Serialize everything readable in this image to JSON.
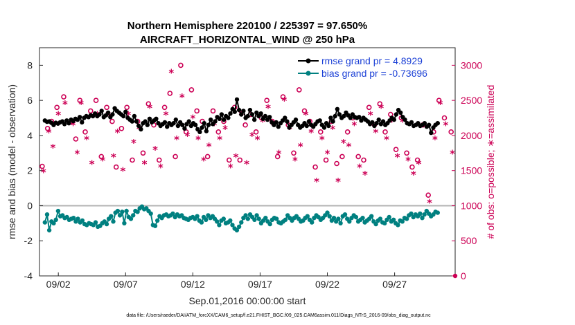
{
  "chart_data": {
    "type": "line",
    "title": "Northern Hemisphere 220100 / 225397 = 97.650%",
    "subtitle": "AIRCRAFT_HORIZONTAL_WIND @ 250 hPa",
    "xlabel": "Sep.01,2016 00:00:00 start",
    "ylabel": "rmse and bias (model - observation)",
    "ylabel_right": "# of obs: o=possible; ∗=assimilated",
    "footnote": "data file: /Users/raeder/DAI/ATM_forcXX/CAM6_setup/f.e21.FHIST_BGC.f09_025.CAM6assim.011/Diags_NTrS_2016-09/obs_diag_output.nc",
    "xlim": [
      0.6,
      31.5
    ],
    "ylim": [
      -4,
      9
    ],
    "ylim_right": [
      0,
      3250
    ],
    "x_ticks": [
      2,
      7,
      12,
      17,
      22,
      27
    ],
    "x_tick_labels": [
      "09/02",
      "09/07",
      "09/12",
      "09/17",
      "09/22",
      "09/27"
    ],
    "y_ticks": [
      -4,
      -2,
      0,
      2,
      4,
      6,
      8
    ],
    "y_tick_labels": [
      "-4",
      "-2",
      "0",
      "2",
      "4",
      "6",
      "8"
    ],
    "y2_ticks": [
      0,
      500,
      1000,
      1500,
      2000,
      2500,
      3000
    ],
    "y2_tick_labels": [
      "0",
      "500",
      "1000",
      "1500",
      "2000",
      "2500",
      "3000"
    ],
    "legend_position": "top-right",
    "colors": {
      "rmse": "#000000",
      "bias": "#008080",
      "obs": "#cc0055",
      "zero_line": "#b3b3b3",
      "legend_text": "#1a3fd6",
      "axis": "#262626"
    },
    "series": [
      {
        "name": "rmse grand pr = 4.8929",
        "axis": "left",
        "marker": "circle",
        "values": [
          4.85,
          4.78,
          4.8,
          4.72,
          4.6,
          4.72,
          4.68,
          4.75,
          4.8,
          4.65,
          4.85,
          4.7,
          4.9,
          4.82,
          4.95,
          4.9,
          5.05,
          4.75,
          5.0,
          5.1,
          5.05,
          5.15,
          5.1,
          5.25,
          5.1,
          5.2,
          5.4,
          5.05,
          5.15,
          5.3,
          5.05,
          5.2,
          5.55,
          5.4,
          5.3,
          5.2,
          5.1,
          5.35,
          5.0,
          4.9,
          4.8,
          5.1,
          4.8,
          4.55,
          4.35,
          4.7,
          4.8,
          4.6,
          4.95,
          4.75,
          4.85,
          4.95,
          4.7,
          4.55,
          4.65,
          4.75,
          4.5,
          4.7,
          4.6,
          4.7,
          4.9,
          4.55,
          4.75,
          4.6,
          4.4,
          4.65,
          4.8,
          4.55,
          4.7,
          4.6,
          4.35,
          4.2,
          4.45,
          4.7,
          4.25,
          4.6,
          4.9,
          4.65,
          4.8,
          5.05,
          4.95,
          5.2,
          4.9,
          5.1,
          5.0,
          5.25,
          5.5,
          5.35,
          6.05,
          5.45,
          5.2,
          5.4,
          5.0,
          5.1,
          5.45,
          5.2,
          4.9,
          5.3,
          5.1,
          5.25,
          4.95,
          5.1,
          4.9,
          5.05,
          4.75,
          4.6,
          4.75,
          4.5,
          4.7,
          4.85,
          5.0,
          4.8,
          4.45,
          4.6,
          4.75,
          4.9,
          4.6,
          4.45,
          4.55,
          4.7,
          4.55,
          4.8,
          4.6,
          4.5,
          4.65,
          4.8,
          4.85,
          4.6,
          4.45,
          4.7,
          4.55,
          5.0,
          4.8,
          5.1,
          5.5,
          5.2,
          5.0,
          5.1,
          5.3,
          5.15,
          5.0,
          5.2,
          5.05,
          5.0,
          5.05,
          4.85,
          5.0,
          4.9,
          4.8,
          4.65,
          4.75,
          4.55,
          4.7,
          4.9,
          4.65,
          4.8,
          4.6,
          4.7,
          4.85,
          5.0,
          4.9,
          5.2,
          5.45,
          5.3,
          5.05,
          4.9,
          4.7,
          4.65,
          4.75,
          4.55,
          4.6,
          4.7,
          4.55,
          4.6,
          4.7,
          4.5,
          4.6,
          4.15,
          4.45,
          4.6,
          4.7
        ]
      },
      {
        "name": "bias grand pr = -0.73696",
        "axis": "left",
        "marker": "circle",
        "values": [
          -0.95,
          -0.5,
          -1.4,
          -0.9,
          -1.0,
          -0.8,
          -0.3,
          -0.6,
          -0.55,
          -0.7,
          -0.65,
          -0.8,
          -0.75,
          -0.7,
          -0.9,
          -0.75,
          -0.95,
          -0.85,
          -1.05,
          -1.1,
          -1.0,
          -1.05,
          -1.1,
          -0.95,
          -1.2,
          -1.15,
          -1.0,
          -0.9,
          -1.05,
          -0.75,
          -0.6,
          -0.9,
          -0.4,
          -0.3,
          -0.55,
          -0.35,
          -1.0,
          -0.3,
          -0.65,
          -0.75,
          -0.55,
          -0.3,
          -0.35,
          -0.15,
          -0.05,
          -0.2,
          -0.15,
          -0.3,
          -0.45,
          -1.1,
          -1.15,
          -0.85,
          -0.6,
          -0.7,
          -0.55,
          -0.5,
          -0.6,
          -0.55,
          -0.45,
          -0.65,
          -0.5,
          -0.6,
          -0.55,
          -0.7,
          -0.75,
          -0.8,
          -0.7,
          -0.65,
          -0.75,
          -0.6,
          -0.85,
          -0.95,
          -0.65,
          -0.8,
          -0.55,
          -0.7,
          -0.6,
          -0.75,
          -0.9,
          -1.1,
          -0.85,
          -0.75,
          -1.0,
          -0.95,
          -0.85,
          -1.1,
          -1.3,
          -1.4,
          -1.2,
          -0.95,
          -0.7,
          -0.55,
          -0.75,
          -0.5,
          -0.65,
          -0.8,
          -0.55,
          -0.75,
          -1.0,
          -0.85,
          -0.7,
          -0.9,
          -1.05,
          -0.8,
          -0.7,
          -0.75,
          -0.95,
          -1.0,
          -0.9,
          -0.8,
          -0.55,
          -0.7,
          -0.85,
          -0.7,
          -0.6,
          -0.75,
          -0.9,
          -0.85,
          -0.7,
          -0.6,
          -0.8,
          -0.95,
          -0.7,
          -0.55,
          -0.65,
          -0.8,
          -0.7,
          -0.55,
          -0.4,
          -0.6,
          -0.85,
          -0.7,
          -0.9,
          -0.75,
          -1.0,
          -0.6,
          -0.5,
          -0.75,
          -0.9,
          -0.7,
          -0.55,
          -0.65,
          -0.9,
          -0.8,
          -0.7,
          -0.95,
          -0.85,
          -0.75,
          -0.6,
          -0.9,
          -1.05,
          -0.85,
          -0.75,
          -0.95,
          -1.0,
          -0.8,
          -0.65,
          -0.9,
          -0.8,
          -1.0,
          -1.1,
          -0.85,
          -0.9,
          -0.7,
          -0.75,
          -0.55,
          -0.45,
          -0.65,
          -0.5,
          -0.6,
          -0.45,
          -0.7,
          -0.5,
          -0.3,
          -0.45,
          -0.6,
          -0.5,
          -0.35,
          -0.4
        ]
      },
      {
        "name": "possible",
        "axis": "right",
        "marker": "o",
        "x": [
          0.8,
          1.2,
          1.5,
          1.9,
          2.4,
          3.0,
          3.3,
          3.6,
          4.0,
          4.4,
          4.8,
          5.2,
          5.6,
          6.0,
          6.3,
          6.7,
          7.1,
          7.5,
          7.9,
          8.3,
          8.7,
          9.1,
          9.5,
          9.9,
          10.3,
          10.7,
          11.1,
          11.5,
          11.9,
          12.3,
          12.7,
          13.1,
          13.5,
          13.9,
          14.3,
          14.7,
          15.1,
          15.5,
          15.9,
          16.3,
          16.7,
          17.1,
          17.5,
          17.9,
          18.3,
          18.7,
          19.1,
          19.5,
          19.9,
          20.3,
          20.7,
          21.1,
          21.5,
          21.9,
          22.3,
          22.7,
          23.1,
          23.5,
          23.9,
          24.3,
          24.7,
          25.1,
          25.5,
          25.9,
          26.3,
          26.7,
          27.1,
          27.5,
          27.9,
          28.3,
          28.7,
          29.1,
          29.5,
          29.9,
          30.3,
          30.7,
          31.2
        ],
        "values": [
          1560,
          2100,
          2200,
          2400,
          2550,
          2200,
          1950,
          2500,
          2050,
          2350,
          2500,
          1700,
          2400,
          2200,
          1550,
          2100,
          2400,
          1650,
          2200,
          1750,
          2450,
          2150,
          1650,
          2400,
          2600,
          1700,
          3000,
          2050,
          2650,
          2350,
          2200,
          1700,
          2350,
          2050,
          2200,
          1650,
          2400,
          1650,
          2150,
          2300,
          2050,
          2250,
          2500,
          2200,
          1700,
          2550,
          2150,
          1750,
          2650,
          2350,
          2200,
          1550,
          2050,
          1650,
          2200,
          1600,
          1700,
          2050,
          2250,
          1700,
          1650,
          2400,
          2150,
          2450,
          2050,
          2300,
          1800,
          2250,
          1750,
          1550,
          1650,
          2150,
          1150,
          2050,
          2500,
          2250,
          2050
        ]
      },
      {
        "name": "assimilated",
        "axis": "right",
        "marker": "asterisk",
        "x": [
          0.9,
          1.3,
          1.6,
          2.0,
          2.5,
          3.1,
          3.4,
          3.7,
          4.1,
          4.5,
          4.9,
          5.3,
          5.7,
          6.1,
          6.4,
          6.8,
          7.2,
          7.6,
          8.0,
          8.4,
          8.8,
          9.2,
          9.6,
          10.0,
          10.4,
          10.8,
          11.2,
          11.6,
          12.0,
          12.4,
          12.8,
          13.2,
          13.6,
          14.0,
          14.4,
          14.8,
          15.2,
          15.6,
          16.0,
          16.4,
          16.8,
          17.2,
          17.6,
          18.0,
          18.4,
          18.8,
          19.2,
          19.6,
          20.0,
          20.4,
          20.8,
          21.2,
          21.6,
          22.0,
          22.4,
          22.8,
          23.2,
          23.6,
          24.0,
          24.4,
          24.8,
          25.2,
          25.6,
          26.0,
          26.4,
          26.8,
          27.2,
          27.6,
          28.0,
          28.4,
          28.8,
          29.2,
          29.6,
          30.0,
          30.4,
          30.8,
          31.3
        ],
        "values": [
          1480,
          2050,
          1830,
          2300,
          2450,
          2150,
          1750,
          2450,
          1950,
          1600,
          2300,
          1650,
          2300,
          1700,
          2050,
          1500,
          2300,
          1900,
          2100,
          1600,
          2400,
          1800,
          1550,
          2300,
          2900,
          1950,
          2550,
          2000,
          2250,
          1950,
          1650,
          1850,
          2150,
          1950,
          2100,
          1550,
          1700,
          2300,
          1600,
          2000,
          1950,
          2200,
          2400,
          2150,
          1750,
          2500,
          2100,
          1650,
          1850,
          2300,
          2050,
          1350,
          1950,
          1750,
          2100,
          1350,
          1900,
          1850,
          2150,
          1550,
          1450,
          2300,
          2050,
          2400,
          1950,
          2200,
          1700,
          2200,
          1650,
          1450,
          1600,
          2150,
          1050,
          1950,
          2450,
          2150,
          1750
        ]
      }
    ]
  }
}
